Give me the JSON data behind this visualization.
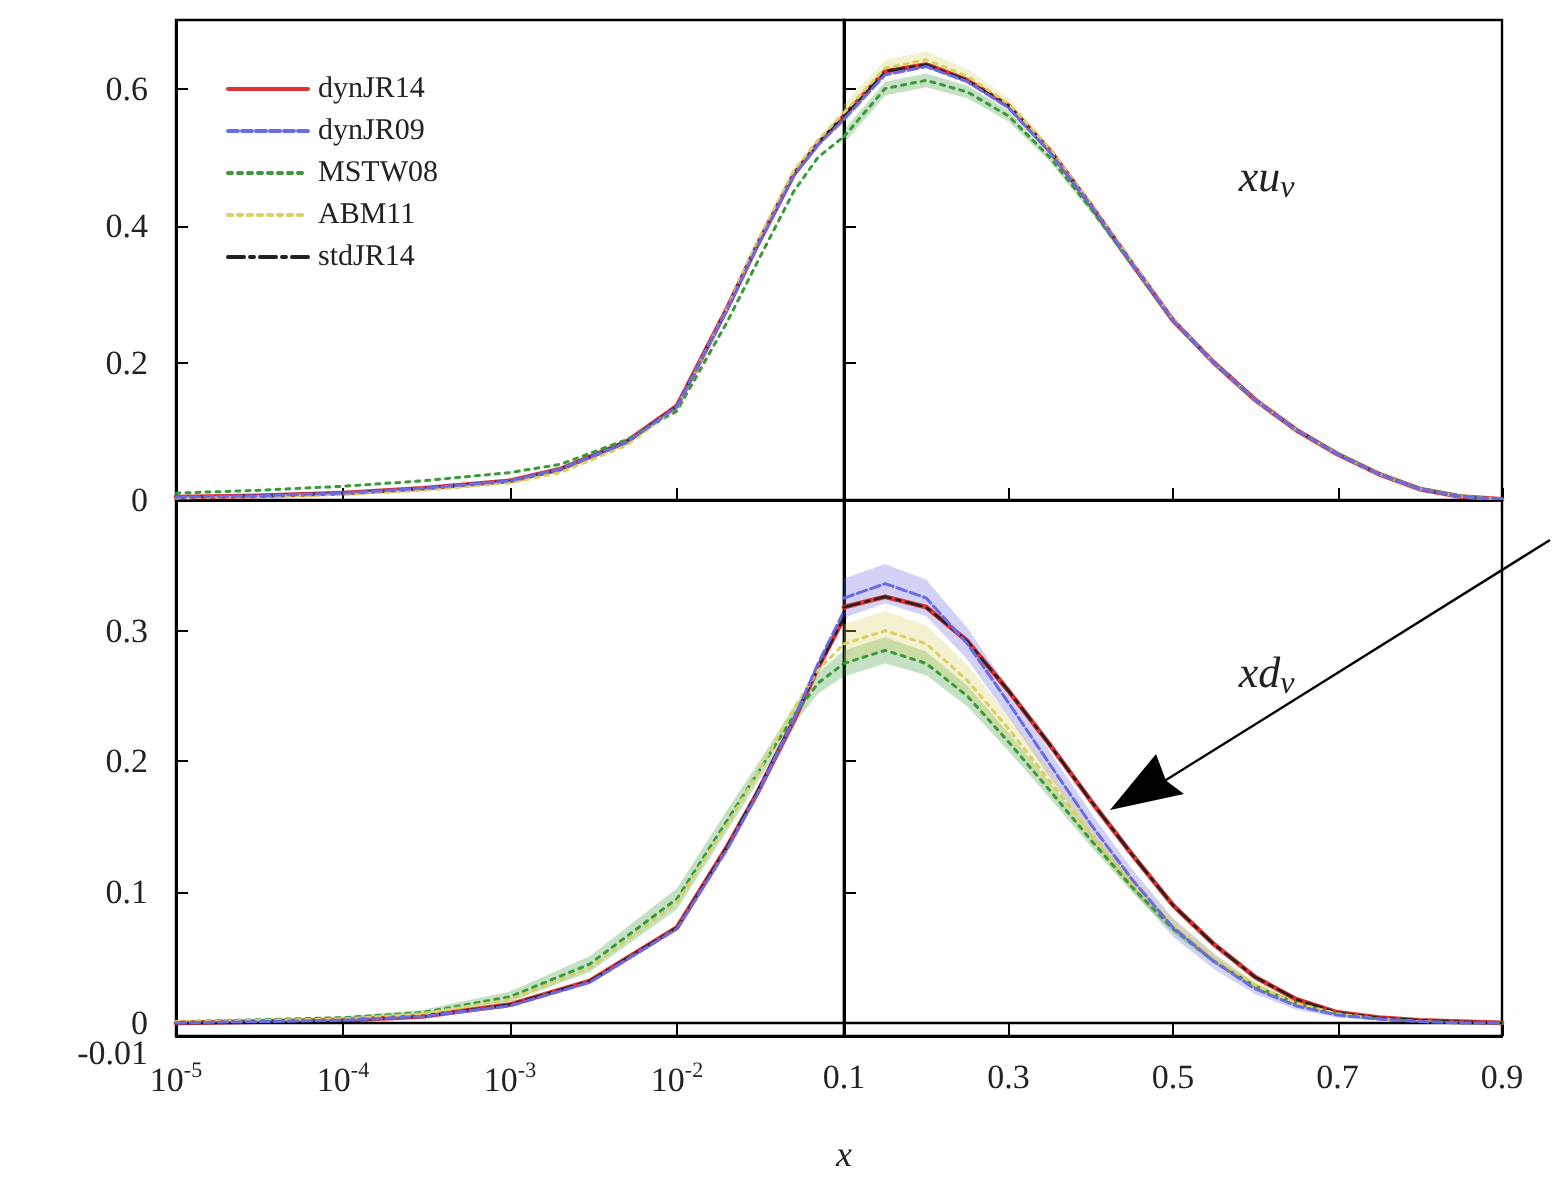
{
  "chart_data": [
    {
      "type": "line",
      "log": "x",
      "tick_labels": "y",
      "legend": "top left",
      "grid": false,
      "xlim": [
        1e-05,
        0.1
      ],
      "ylim": [
        0,
        0.7
      ],
      "xticks": [
        {
          "value": 1e-05,
          "label": null
        },
        {
          "value": 0.0001,
          "label": null
        },
        {
          "value": 0.001,
          "label": null
        },
        {
          "value": 0.01,
          "label": null
        },
        {
          "value": 0.1,
          "label": null
        }
      ],
      "yticks": [
        0,
        0.2,
        0.4,
        0.6
      ],
      "x": [
        1e-05,
        3e-05,
        0.0001,
        0.0003,
        0.001,
        0.002,
        0.005,
        0.01,
        0.02,
        0.03,
        0.05,
        0.07,
        0.1
      ],
      "series": [
        {
          "name": "dynJR14",
          "color": "#e03030",
          "line_style": "solid",
          "values": [
            0.004,
            0.006,
            0.01,
            0.017,
            0.028,
            0.045,
            0.085,
            0.137,
            0.28,
            0.37,
            0.475,
            0.52,
            0.56
          ]
        },
        {
          "name": "dynJR09",
          "color": "#6a6ae6",
          "line_style": "dashed",
          "values": [
            0.004,
            0.006,
            0.01,
            0.017,
            0.028,
            0.045,
            0.084,
            0.136,
            0.278,
            0.368,
            0.473,
            0.518,
            0.555
          ]
        },
        {
          "name": "MSTW08",
          "color": "#3a9a3a",
          "line_style": "dotted",
          "values": [
            0.01,
            0.014,
            0.02,
            0.028,
            0.04,
            0.052,
            0.088,
            0.13,
            0.26,
            0.345,
            0.45,
            0.5,
            0.53
          ]
        },
        {
          "name": "ABM11",
          "color": "#d8d060",
          "line_style": "dotted",
          "values": [
            0.003,
            0.005,
            0.008,
            0.014,
            0.025,
            0.04,
            0.08,
            0.135,
            0.28,
            0.375,
            0.48,
            0.525,
            0.565
          ]
        },
        {
          "name": "stdJR14",
          "color": "#222222",
          "line_style": "dashdot",
          "values": [
            0.004,
            0.006,
            0.01,
            0.017,
            0.028,
            0.045,
            0.085,
            0.137,
            0.28,
            0.37,
            0.475,
            0.52,
            0.56
          ]
        }
      ]
    },
    {
      "type": "line",
      "tick_labels": false,
      "grid": false,
      "xlim": [
        0.1,
        0.9
      ],
      "ylim": [
        0,
        0.7
      ],
      "xticks": [
        0.1,
        0.3,
        0.5,
        0.7,
        0.9
      ],
      "yticks": [
        0,
        0.2,
        0.4,
        0.6
      ],
      "annotations": [
        "xu$_{v}$"
      ],
      "x": [
        0.1,
        0.15,
        0.2,
        0.25,
        0.3,
        0.35,
        0.4,
        0.45,
        0.5,
        0.55,
        0.6,
        0.65,
        0.7,
        0.75,
        0.8,
        0.85,
        0.9
      ],
      "series": [
        {
          "color": "#e03030",
          "line_style": "solid",
          "values": [
            0.56,
            0.625,
            0.635,
            0.612,
            0.575,
            0.51,
            0.43,
            0.345,
            0.262,
            0.2,
            0.146,
            0.102,
            0.067,
            0.038,
            0.016,
            0.005,
            0.001
          ]
        },
        {
          "color": "#6a6ae6",
          "line_style": "dashed",
          "values": [
            0.555,
            0.62,
            0.632,
            0.61,
            0.572,
            0.508,
            0.43,
            0.345,
            0.262,
            0.2,
            0.146,
            0.102,
            0.067,
            0.038,
            0.016,
            0.005,
            0.001
          ]
        },
        {
          "color": "#3a9a3a",
          "line_style": "dotted",
          "values": [
            0.53,
            0.6,
            0.612,
            0.595,
            0.56,
            0.5,
            0.425,
            0.343,
            0.262,
            0.2,
            0.146,
            0.102,
            0.068,
            0.039,
            0.017,
            0.006,
            0.001
          ],
          "lower": [
            0.52,
            0.59,
            0.602,
            0.586,
            0.552,
            0.494,
            0.42,
            0.339,
            0.258,
            0.197,
            0.143,
            0.1,
            0.066,
            0.037,
            0.016,
            0.005,
            0.0
          ],
          "upper": [
            0.54,
            0.61,
            0.622,
            0.604,
            0.568,
            0.506,
            0.43,
            0.347,
            0.266,
            0.203,
            0.149,
            0.104,
            0.07,
            0.041,
            0.018,
            0.007,
            0.002
          ]
        },
        {
          "color": "#d8d060",
          "line_style": "dotted",
          "values": [
            0.565,
            0.63,
            0.642,
            0.618,
            0.578,
            0.512,
            0.432,
            0.347,
            0.263,
            0.2,
            0.146,
            0.102,
            0.067,
            0.038,
            0.016,
            0.005,
            0.001
          ],
          "lower": [
            0.553,
            0.618,
            0.63,
            0.608,
            0.57,
            0.506,
            0.427,
            0.343,
            0.259,
            0.197,
            0.143,
            0.1,
            0.065,
            0.036,
            0.015,
            0.004,
            0.0
          ],
          "upper": [
            0.577,
            0.642,
            0.654,
            0.628,
            0.586,
            0.518,
            0.437,
            0.351,
            0.267,
            0.203,
            0.149,
            0.104,
            0.069,
            0.04,
            0.017,
            0.006,
            0.002
          ]
        },
        {
          "color": "#222222",
          "line_style": "dashdot",
          "values": [
            0.56,
            0.625,
            0.635,
            0.612,
            0.575,
            0.51,
            0.43,
            0.345,
            0.262,
            0.2,
            0.146,
            0.102,
            0.067,
            0.038,
            0.016,
            0.005,
            0.001
          ]
        }
      ]
    },
    {
      "type": "line",
      "log": "x",
      "grid": false,
      "xlabel": "x",
      "xlim": [
        1e-05,
        0.1
      ],
      "ylim": [
        -0.01,
        0.4
      ],
      "xticks": [
        {
          "value": 1e-05,
          "label": "10$^{-5}$"
        },
        {
          "value": 0.0001,
          "label": "10$^{-4}$"
        },
        {
          "value": 0.001,
          "label": "10$^{-3}$"
        },
        {
          "value": 0.01,
          "label": "10$^{-2}$"
        },
        {
          "value": 0.1,
          "label": null
        }
      ],
      "yticks": [
        -0.01,
        0,
        0.1,
        0.2,
        0.3
      ],
      "ref_lines": [
        {
          "axis": "y",
          "value": 0
        }
      ],
      "x": [
        1e-05,
        0.0001,
        0.0003,
        0.001,
        0.003,
        0.01,
        0.02,
        0.03,
        0.05,
        0.07,
        0.1
      ],
      "series": [
        {
          "color": "#e03030",
          "line_style": "solid",
          "values": [
            0.0,
            0.002,
            0.005,
            0.014,
            0.032,
            0.073,
            0.135,
            0.175,
            0.231,
            0.272,
            0.31
          ]
        },
        {
          "color": "#6a6ae6",
          "line_style": "dashed",
          "values": [
            0.0,
            0.002,
            0.005,
            0.013,
            0.031,
            0.072,
            0.133,
            0.174,
            0.232,
            0.275,
            0.315
          ]
        },
        {
          "color": "#3a9a3a",
          "line_style": "dotted",
          "values": [
            0.001,
            0.004,
            0.008,
            0.02,
            0.045,
            0.095,
            0.155,
            0.19,
            0.235,
            0.26,
            0.275
          ],
          "lower": [
            0.0005,
            0.003,
            0.006,
            0.016,
            0.039,
            0.087,
            0.147,
            0.183,
            0.228,
            0.252,
            0.265
          ],
          "upper": [
            0.0015,
            0.005,
            0.01,
            0.024,
            0.051,
            0.103,
            0.163,
            0.197,
            0.242,
            0.268,
            0.285
          ]
        },
        {
          "color": "#d8d060",
          "line_style": "dotted",
          "values": [
            0.001,
            0.003,
            0.007,
            0.018,
            0.042,
            0.092,
            0.152,
            0.19,
            0.24,
            0.27,
            0.29
          ]
        },
        {
          "color": "#222222",
          "line_style": "dashdot",
          "values": [
            0.0,
            0.002,
            0.005,
            0.014,
            0.032,
            0.073,
            0.135,
            0.176,
            0.232,
            0.272,
            0.31
          ]
        }
      ]
    },
    {
      "type": "line",
      "tick_labels": "x",
      "grid": false,
      "xlim": [
        0.1,
        0.9
      ],
      "ylim": [
        -0.01,
        0.4
      ],
      "xticks": [
        0.1,
        0.3,
        0.5,
        0.7,
        0.9
      ],
      "yticks": [
        -0.01,
        0,
        0.1,
        0.2,
        0.3
      ],
      "annotations": [
        "xd$_{v}$"
      ],
      "ref_lines": [
        {
          "axis": "y",
          "value": 0
        }
      ],
      "x": [
        0.1,
        0.15,
        0.2,
        0.25,
        0.3,
        0.35,
        0.4,
        0.45,
        0.5,
        0.55,
        0.6,
        0.65,
        0.7,
        0.75,
        0.8,
        0.85,
        0.9
      ],
      "series": [
        {
          "color": "#e03030",
          "line_style": "solid",
          "values": [
            0.318,
            0.326,
            0.318,
            0.292,
            0.254,
            0.213,
            0.17,
            0.129,
            0.09,
            0.06,
            0.035,
            0.018,
            0.008,
            0.004,
            0.002,
            0.001,
            0.0
          ]
        },
        {
          "color": "#6a6ae6",
          "line_style": "dashed",
          "values": [
            0.325,
            0.336,
            0.325,
            0.29,
            0.245,
            0.198,
            0.152,
            0.11,
            0.073,
            0.047,
            0.026,
            0.013,
            0.006,
            0.003,
            0.001,
            0.0,
            0.0
          ],
          "lower": [
            0.31,
            0.321,
            0.311,
            0.278,
            0.234,
            0.188,
            0.143,
            0.102,
            0.066,
            0.041,
            0.022,
            0.01,
            0.004,
            0.002,
            0.0,
            0.0,
            0.0
          ],
          "upper": [
            0.34,
            0.351,
            0.339,
            0.302,
            0.256,
            0.208,
            0.161,
            0.118,
            0.08,
            0.053,
            0.03,
            0.016,
            0.008,
            0.004,
            0.002,
            0.001,
            0.0
          ]
        },
        {
          "color": "#3a9a3a",
          "line_style": "dotted",
          "values": [
            0.275,
            0.285,
            0.275,
            0.25,
            0.215,
            0.178,
            0.14,
            0.104,
            0.072,
            0.047,
            0.028,
            0.015,
            0.007,
            0.003,
            0.001,
            0.0,
            0.0
          ],
          "lower": [
            0.265,
            0.275,
            0.266,
            0.242,
            0.208,
            0.172,
            0.135,
            0.1,
            0.069,
            0.045,
            0.026,
            0.014,
            0.006,
            0.002,
            0.0,
            0.0,
            0.0
          ],
          "upper": [
            0.285,
            0.295,
            0.284,
            0.258,
            0.222,
            0.184,
            0.145,
            0.108,
            0.075,
            0.049,
            0.03,
            0.016,
            0.008,
            0.004,
            0.002,
            0.001,
            0.0
          ]
        },
        {
          "color": "#d8d060",
          "line_style": "dotted",
          "values": [
            0.29,
            0.3,
            0.29,
            0.262,
            0.225,
            0.185,
            0.145,
            0.107,
            0.075,
            0.049,
            0.029,
            0.015,
            0.007,
            0.003,
            0.001,
            0.0,
            0.0
          ],
          "lower": [
            0.275,
            0.285,
            0.276,
            0.25,
            0.215,
            0.176,
            0.138,
            0.101,
            0.07,
            0.045,
            0.026,
            0.013,
            0.006,
            0.002,
            0.0,
            0.0,
            0.0
          ],
          "upper": [
            0.305,
            0.315,
            0.304,
            0.274,
            0.235,
            0.194,
            0.152,
            0.113,
            0.08,
            0.053,
            0.032,
            0.017,
            0.008,
            0.004,
            0.002,
            0.001,
            0.0
          ]
        },
        {
          "color": "#222222",
          "line_style": "dashdot",
          "values": [
            0.318,
            0.326,
            0.318,
            0.292,
            0.254,
            0.213,
            0.17,
            0.129,
            0.09,
            0.06,
            0.035,
            0.018,
            0.008,
            0.004,
            0.002,
            0.001,
            0.0
          ]
        }
      ]
    }
  ]
}
